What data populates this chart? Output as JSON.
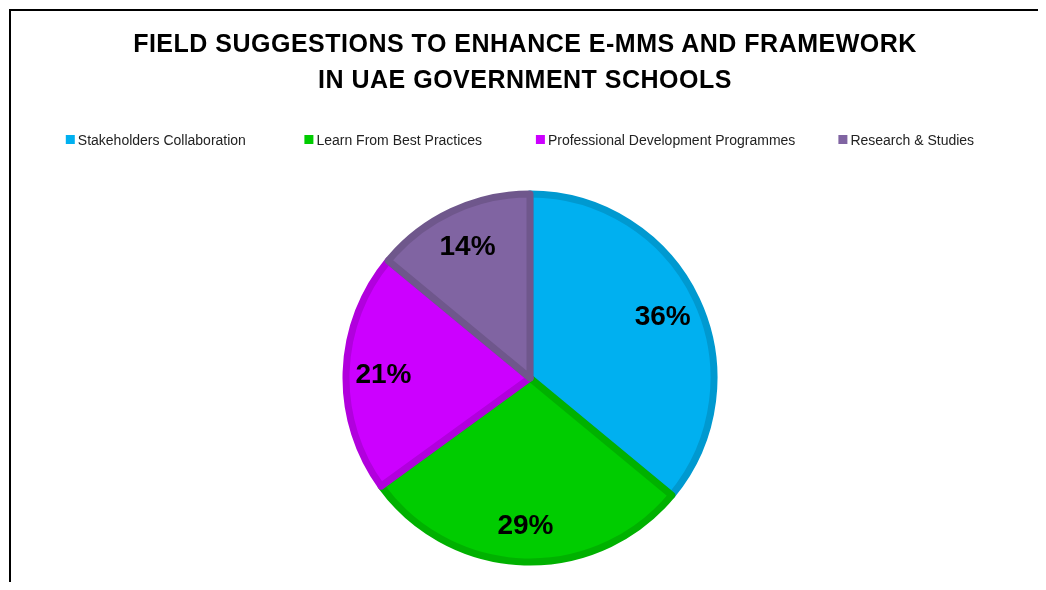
{
  "chart_data": {
    "type": "pie",
    "title": "FIELD SUGGESTIONS TO ENHANCE E-MMS AND FRAMEWORK IN UAE GOVERNMENT SCHOOLS",
    "categories": [
      "Stakeholders Collaboration",
      "Learn From Best Practices",
      "Professional Development Programmes",
      "Research & Studies"
    ],
    "values": [
      36,
      29,
      21,
      14
    ],
    "value_labels": [
      "36%",
      "29%",
      "21%",
      "14%"
    ],
    "colors": [
      "#00b0f0",
      "#00cc00",
      "#cc00ff",
      "#8064a2"
    ],
    "legend": "top"
  }
}
